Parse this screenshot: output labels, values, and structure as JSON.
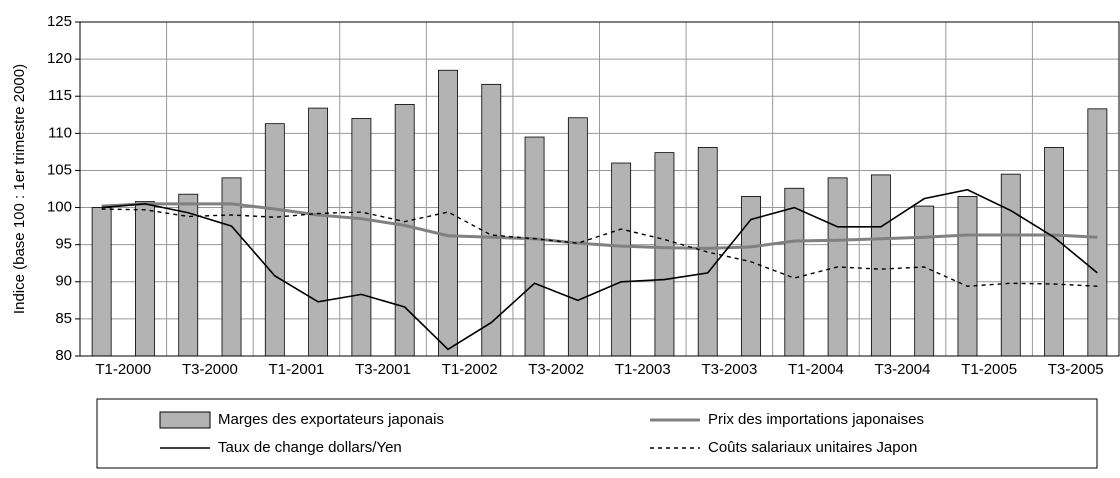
{
  "chart_data": {
    "type": "bar",
    "y_label": "Indice (base 100 : 1er trimestre 2000)",
    "categories": [
      "T1-2000",
      null,
      "T3-2000",
      null,
      "T1-2001",
      null,
      "T3-2001",
      null,
      "T1-2002",
      null,
      "T3-2002",
      null,
      "T1-2003",
      null,
      "T3-2003",
      null,
      "T1-2004",
      null,
      "T3-2004",
      null,
      "T1-2005",
      null,
      "T3-2005",
      null
    ],
    "ylim": [
      80,
      125
    ],
    "yticks": [
      80,
      85,
      90,
      95,
      100,
      105,
      110,
      115,
      120,
      125
    ],
    "grid": true,
    "series": [
      {
        "name": "Marges des exportateurs japonais",
        "type": "bar",
        "color": "#b3b3b3",
        "values": [
          100,
          100.8,
          101.8,
          104,
          111.3,
          113.4,
          112,
          113.9,
          118.5,
          116.6,
          109.5,
          112.1,
          106,
          107.4,
          108.1,
          101.5,
          102.6,
          104,
          104.4,
          100.2,
          101.5,
          104.5,
          108.1,
          113.3
        ]
      },
      {
        "name": "Prix des importations japonaises",
        "type": "line",
        "color": "#808080",
        "width": 3,
        "dash": false,
        "values": [
          100.2,
          100.5,
          100.5,
          100.5,
          99.8,
          99,
          98.5,
          97.6,
          96.2,
          96,
          95.8,
          95.2,
          94.8,
          94.6,
          94.5,
          94.7,
          95.5,
          95.6,
          95.8,
          96,
          96.3,
          96.3,
          96.3,
          96
        ]
      },
      {
        "name": "Taux de change dollars/Yen",
        "type": "line",
        "color": "#000000",
        "width": 1.6,
        "dash": false,
        "values": [
          100,
          100.5,
          99.3,
          97.5,
          90.8,
          87.3,
          88.3,
          86.6,
          80.9,
          84.5,
          89.8,
          87.5,
          90,
          90.3,
          91.2,
          98.4,
          100,
          97.4,
          97.4,
          101.2,
          102.4,
          99.6,
          96,
          91.2
        ]
      },
      {
        "name": "Coûts salariaux unitaires Japon",
        "type": "line",
        "color": "#000000",
        "width": 1.4,
        "dash": true,
        "values": [
          99.8,
          99.7,
          98.8,
          99,
          98.7,
          99.2,
          99.4,
          98.1,
          99.4,
          96.3,
          95.8,
          95.2,
          97.1,
          95.7,
          94,
          92.7,
          90.5,
          92,
          91.7,
          92,
          89.4,
          89.8,
          89.7,
          89.4
        ]
      }
    ]
  }
}
